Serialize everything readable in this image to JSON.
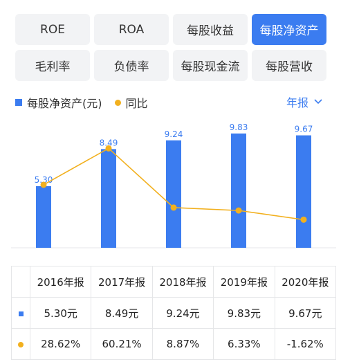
{
  "tabs": {
    "row1": [
      "ROE",
      "ROA",
      "每股收益",
      "每股净资产"
    ],
    "row2": [
      "毛利率",
      "负债率",
      "每股现金流",
      "每股营收"
    ],
    "active": "每股净资产"
  },
  "legend": {
    "bar_label": "每股净资产(元)",
    "line_label": "同比"
  },
  "period": {
    "label": "年报",
    "icon": "chevron-down-icon"
  },
  "colors": {
    "accent": "#3b7cf0",
    "line": "#f2b01e",
    "positive": "#e04343",
    "negative": "#19a15f"
  },
  "chart_data": {
    "type": "bar",
    "categories": [
      "2016年报",
      "2017年报",
      "2018年报",
      "2019年报",
      "2020年报"
    ],
    "series": [
      {
        "name": "每股净资产(元)",
        "type": "bar",
        "values": [
          5.3,
          8.49,
          9.24,
          9.83,
          9.67
        ]
      },
      {
        "name": "同比",
        "type": "line",
        "values": [
          28.62,
          60.21,
          8.87,
          6.33,
          -1.62
        ],
        "unit": "%"
      }
    ],
    "bar_labels": [
      "5.30",
      "8.49",
      "9.24",
      "9.83",
      "9.67"
    ],
    "legend_position": "top-left",
    "grid": false
  },
  "table": {
    "headers": [
      "2016年报",
      "2017年报",
      "2018年报",
      "2019年报",
      "2020年报"
    ],
    "bar_row": [
      "5.30元",
      "8.49元",
      "9.24元",
      "9.83元",
      "9.67元"
    ],
    "line_row": [
      "28.62%",
      "60.21%",
      "8.87%",
      "6.33%",
      "-1.62%"
    ]
  }
}
